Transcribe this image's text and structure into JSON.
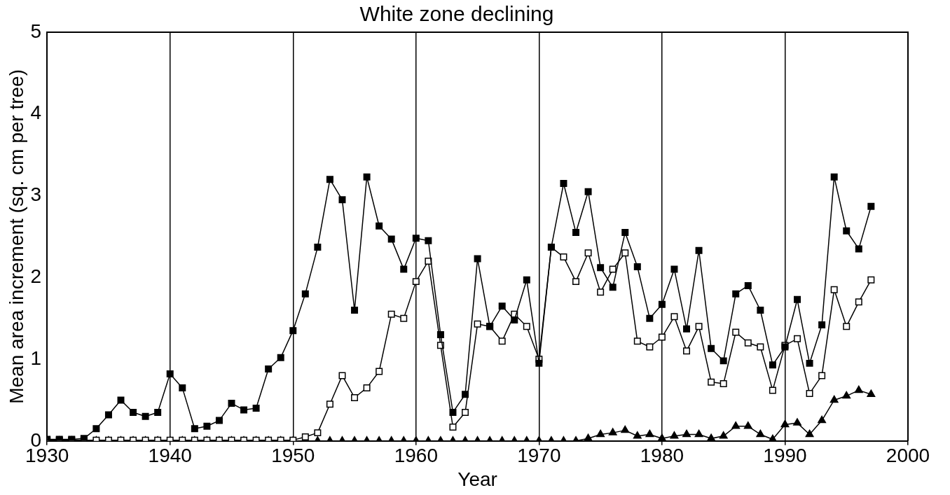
{
  "chart_data": {
    "type": "line",
    "title": "White zone declining",
    "xlabel": "Year",
    "ylabel": "Mean area increment (sq. cm per tree)",
    "x": [
      1930,
      1931,
      1932,
      1933,
      1934,
      1935,
      1936,
      1937,
      1938,
      1939,
      1940,
      1941,
      1942,
      1943,
      1944,
      1945,
      1946,
      1947,
      1948,
      1949,
      1950,
      1951,
      1952,
      1953,
      1954,
      1955,
      1956,
      1957,
      1958,
      1959,
      1960,
      1961,
      1962,
      1963,
      1964,
      1965,
      1966,
      1967,
      1968,
      1969,
      1970,
      1971,
      1972,
      1973,
      1974,
      1975,
      1976,
      1977,
      1978,
      1979,
      1980,
      1981,
      1982,
      1983,
      1984,
      1985,
      1986,
      1987,
      1988,
      1989,
      1990,
      1991,
      1992,
      1993,
      1994,
      1995,
      1996,
      1997
    ],
    "series": [
      {
        "color": "#000000",
        "marker": "square",
        "values": [
          0.02,
          0.02,
          0.02,
          0.03,
          0.15,
          0.32,
          0.5,
          0.35,
          0.3,
          0.35,
          0.82,
          0.65,
          0.15,
          0.18,
          0.25,
          0.46,
          0.38,
          0.4,
          0.88,
          1.02,
          1.35,
          1.8,
          2.37,
          3.2,
          2.95,
          1.6,
          3.23,
          2.63,
          2.47,
          2.1,
          2.48,
          2.45,
          1.3,
          0.35,
          0.57,
          2.23,
          1.4,
          1.65,
          1.48,
          1.97,
          0.95,
          2.37,
          3.15,
          2.55,
          3.05,
          2.12,
          1.88,
          2.55,
          2.13,
          1.5,
          1.67,
          2.1,
          1.37,
          2.33,
          1.13,
          0.98,
          1.8,
          1.9,
          1.6,
          0.93,
          1.15,
          1.73,
          0.95,
          1.42,
          3.23,
          2.57,
          2.35,
          2.87
        ]
      },
      {
        "color": "#000000",
        "marker": "square",
        "values": [
          0.01,
          0.01,
          0.01,
          0.01,
          0.01,
          0.01,
          0.01,
          0.01,
          0.01,
          0.01,
          0.01,
          0.01,
          0.01,
          0.01,
          0.01,
          0.01,
          0.01,
          0.01,
          0.01,
          0.01,
          0.01,
          0.05,
          0.1,
          0.45,
          0.8,
          0.53,
          0.65,
          0.85,
          1.55,
          1.5,
          1.95,
          2.2,
          1.17,
          0.17,
          0.35,
          1.43,
          1.4,
          1.22,
          1.55,
          1.4,
          1.0,
          2.37,
          2.25,
          1.95,
          2.3,
          1.82,
          2.1,
          2.3,
          1.22,
          1.15,
          1.27,
          1.52,
          1.1,
          1.4,
          0.72,
          0.7,
          1.33,
          1.2,
          1.15,
          0.62,
          1.17,
          1.25,
          0.58,
          0.8,
          1.85,
          1.4,
          1.7,
          1.97
        ]
      },
      {
        "color": "#000000",
        "marker": "triangle",
        "values": [
          0,
          0,
          0,
          0,
          0,
          0,
          0,
          0,
          0,
          0,
          0,
          0,
          0,
          0,
          0,
          0,
          0,
          0,
          0,
          0,
          0,
          0,
          0,
          0,
          0,
          0,
          0,
          0,
          0,
          0,
          0,
          0,
          0,
          0,
          0,
          0,
          0,
          0,
          0,
          0,
          0,
          0,
          0,
          0,
          0.03,
          0.08,
          0.1,
          0.13,
          0.06,
          0.08,
          0.03,
          0.06,
          0.08,
          0.08,
          0.03,
          0.06,
          0.18,
          0.18,
          0.08,
          0.02,
          0.2,
          0.22,
          0.08,
          0.25,
          0.5,
          0.55,
          0.62,
          0.57
        ]
      }
    ],
    "xlim": [
      1930,
      2000
    ],
    "xticks": [
      1930,
      1940,
      1950,
      1960,
      1970,
      1980,
      1990,
      2000
    ],
    "ylim": [
      0,
      5
    ],
    "yticks": [
      0,
      1,
      2,
      3,
      4,
      5
    ],
    "grid": "x",
    "legend": false
  }
}
